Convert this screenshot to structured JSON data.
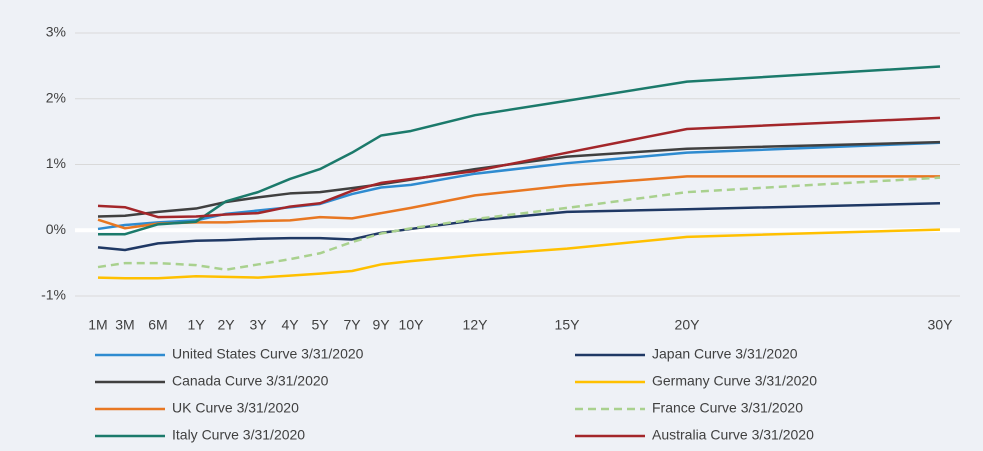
{
  "chart_data": {
    "type": "line",
    "categories": [
      "1M",
      "3M",
      "6M",
      "1Y",
      "2Y",
      "3Y",
      "4Y",
      "5Y",
      "7Y",
      "9Y",
      "10Y",
      "12Y",
      "15Y",
      "20Y",
      "30Y"
    ],
    "series": [
      {
        "name": "United States Curve 3/31/2020",
        "color": "#2e8bd0",
        "values": [
          0.02,
          0.08,
          0.12,
          0.15,
          0.25,
          0.3,
          0.35,
          0.4,
          0.55,
          0.65,
          0.69,
          0.86,
          1.02,
          1.18,
          1.33
        ]
      },
      {
        "name": "Japan Curve 3/31/2020",
        "color": "#1f3864",
        "values": [
          -0.26,
          -0.3,
          -0.2,
          -0.16,
          -0.15,
          -0.13,
          -0.12,
          -0.12,
          -0.14,
          -0.04,
          0.02,
          0.15,
          0.28,
          0.32,
          0.41
        ]
      },
      {
        "name": "Canada Curve 3/31/2020",
        "color": "#404040",
        "values": [
          0.21,
          0.22,
          0.28,
          0.33,
          0.43,
          0.5,
          0.56,
          0.58,
          0.64,
          0.7,
          0.77,
          0.93,
          1.12,
          1.24,
          1.34
        ]
      },
      {
        "name": "Germany Curve 3/31/2020",
        "color": "#ffc000",
        "values": [
          -0.72,
          -0.73,
          -0.73,
          -0.7,
          -0.71,
          -0.72,
          -0.69,
          -0.66,
          -0.62,
          -0.52,
          -0.47,
          -0.38,
          -0.28,
          -0.1,
          0.01
        ]
      },
      {
        "name": "UK Curve 3/31/2020",
        "color": "#e87722",
        "values": [
          0.16,
          0.03,
          0.1,
          0.12,
          0.12,
          0.14,
          0.15,
          0.2,
          0.18,
          0.26,
          0.34,
          0.53,
          0.68,
          0.82,
          0.82
        ]
      },
      {
        "name": "France Curve 3/31/2020",
        "color": "#a9d18e",
        "dash": true,
        "values": [
          -0.56,
          -0.5,
          -0.5,
          -0.53,
          -0.6,
          -0.52,
          -0.44,
          -0.35,
          -0.18,
          -0.05,
          0.03,
          0.17,
          0.34,
          0.58,
          0.8
        ]
      },
      {
        "name": "Italy Curve 3/31/2020",
        "color": "#1b7a6b",
        "values": [
          -0.06,
          -0.06,
          0.09,
          0.13,
          0.44,
          0.58,
          0.78,
          0.93,
          1.18,
          1.44,
          1.51,
          1.75,
          1.97,
          2.26,
          2.49
        ]
      },
      {
        "name": "Australia Curve 3/31/2020",
        "color": "#a3262a",
        "values": [
          0.37,
          0.35,
          0.2,
          0.21,
          0.24,
          0.26,
          0.36,
          0.41,
          0.6,
          0.72,
          0.78,
          0.9,
          1.18,
          1.54,
          1.71
        ]
      }
    ],
    "ylim": [
      -1,
      3
    ],
    "yticks": [
      {
        "value": -1,
        "label": "-1%"
      },
      {
        "value": 0,
        "label": "0%"
      },
      {
        "value": 1,
        "label": "1%"
      },
      {
        "value": 2,
        "label": "2%"
      },
      {
        "value": 3,
        "label": "3%"
      }
    ],
    "grid": true,
    "legend": "bottom"
  }
}
